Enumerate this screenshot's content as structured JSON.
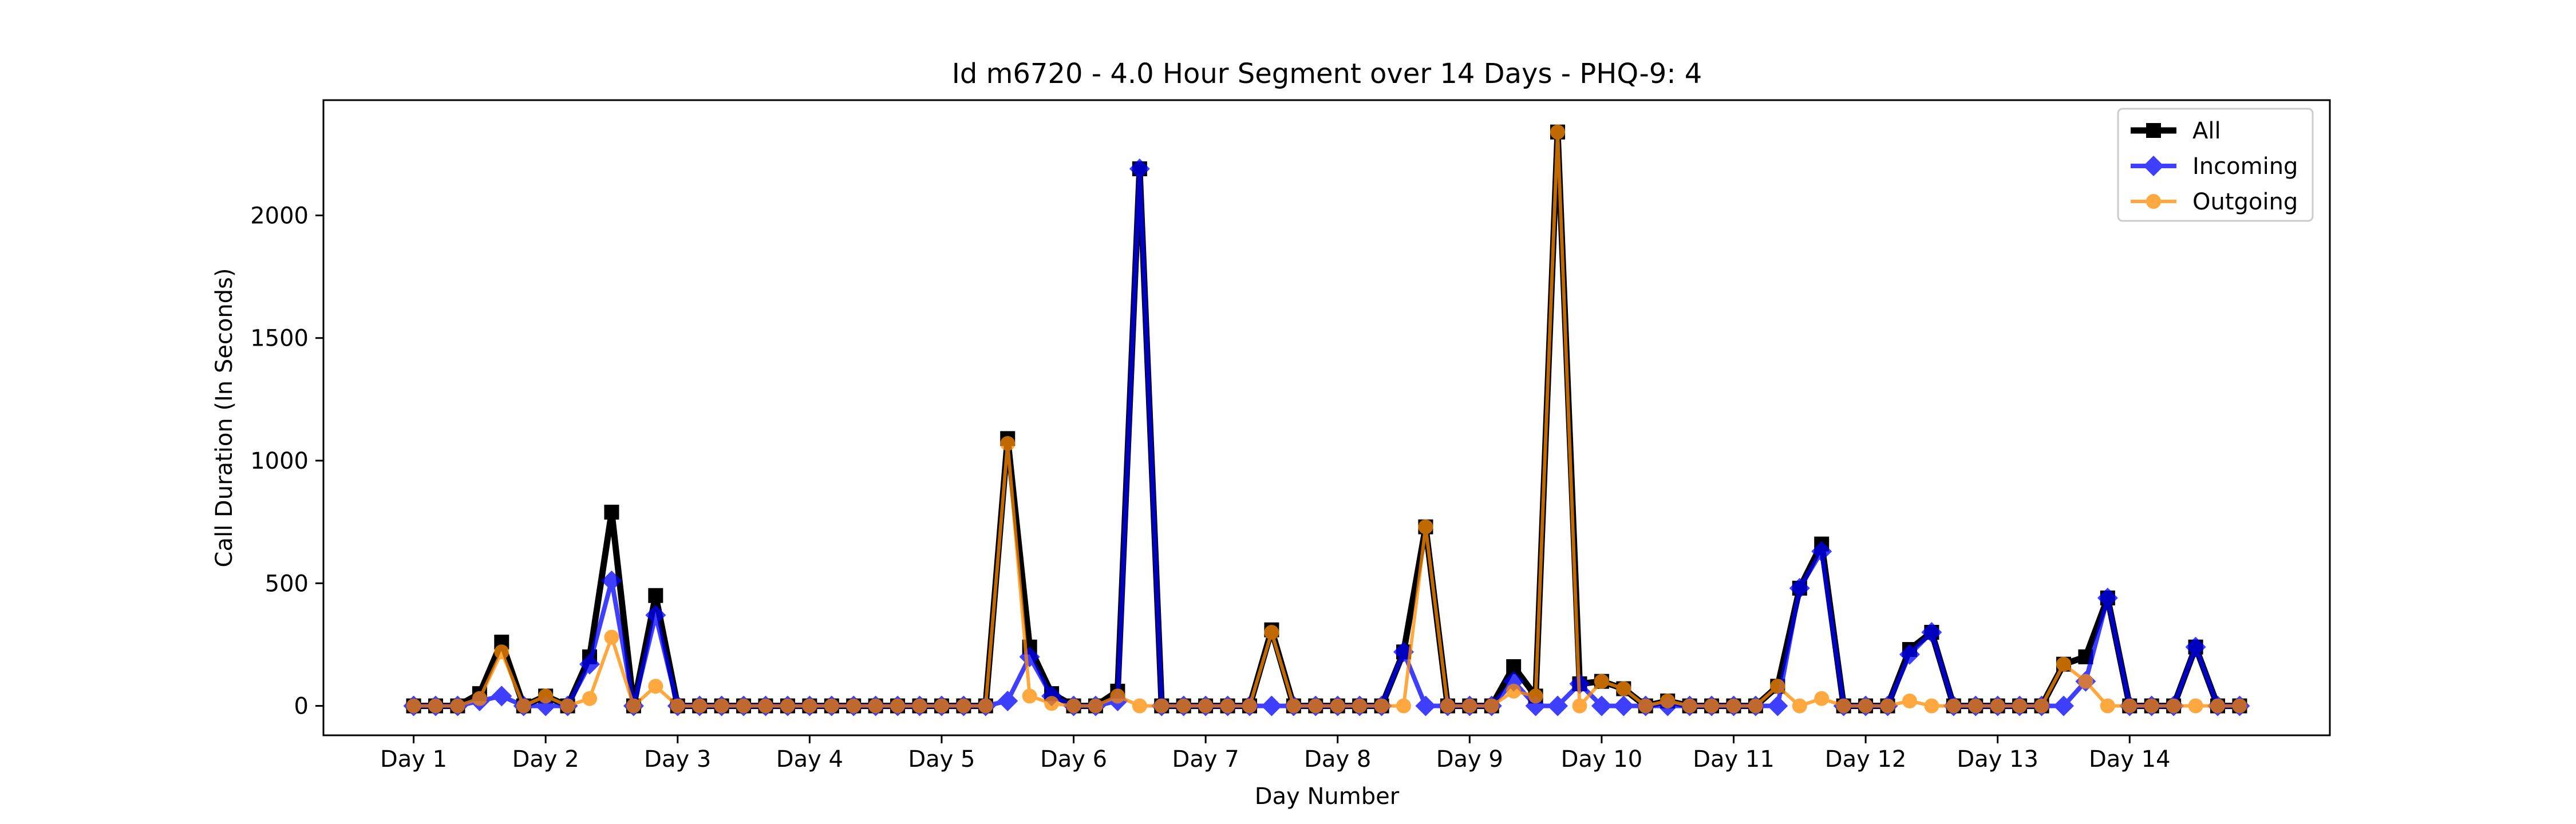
{
  "chart_data": {
    "type": "line",
    "title": "Id m6720 - 4.0 Hour Segment over 14 Days - PHQ-9: 4",
    "xlabel": "Day Number",
    "ylabel": "Call Duration (In Seconds)",
    "x_tick_labels": [
      "Day 1",
      "Day 2",
      "Day 3",
      "Day 4",
      "Day 5",
      "Day 6",
      "Day 7",
      "Day 8",
      "Day 9",
      "Day 10",
      "Day 11",
      "Day 12",
      "Day 13",
      "Day 14"
    ],
    "x_tick_positions": [
      0,
      6,
      12,
      18,
      24,
      30,
      36,
      42,
      48,
      54,
      60,
      66,
      72,
      78
    ],
    "y_ticks": [
      0,
      500,
      1000,
      1500,
      2000
    ],
    "xlim": [
      -4.1,
      87.1
    ],
    "ylim": [
      -120,
      2470
    ],
    "legend_position": "top-right",
    "series": [
      {
        "name": "All",
        "color": "#000000",
        "marker": "square",
        "values": [
          0,
          0,
          0,
          50,
          260,
          0,
          40,
          0,
          200,
          790,
          0,
          450,
          0,
          0,
          0,
          0,
          0,
          0,
          0,
          0,
          0,
          0,
          0,
          0,
          0,
          0,
          0,
          1090,
          240,
          50,
          0,
          0,
          60,
          2190,
          0,
          0,
          0,
          0,
          0,
          310,
          0,
          0,
          0,
          0,
          0,
          220,
          730,
          0,
          0,
          0,
          160,
          40,
          2340,
          90,
          100,
          70,
          0,
          20,
          0,
          0,
          0,
          0,
          80,
          480,
          660,
          0,
          0,
          0,
          230,
          300,
          0,
          0,
          0,
          0,
          0,
          170,
          200,
          440,
          0,
          0,
          0,
          240,
          0,
          0
        ]
      },
      {
        "name": "Incoming",
        "color": "#0000ff",
        "marker": "diamond",
        "values": [
          0,
          0,
          0,
          20,
          40,
          0,
          0,
          0,
          170,
          510,
          0,
          370,
          0,
          0,
          0,
          0,
          0,
          0,
          0,
          0,
          0,
          0,
          0,
          0,
          0,
          0,
          0,
          20,
          200,
          40,
          0,
          0,
          20,
          2190,
          0,
          0,
          0,
          0,
          0,
          0,
          0,
          0,
          0,
          0,
          0,
          220,
          0,
          0,
          0,
          0,
          100,
          0,
          0,
          90,
          0,
          0,
          0,
          0,
          0,
          0,
          0,
          0,
          0,
          480,
          630,
          0,
          0,
          0,
          210,
          300,
          0,
          0,
          0,
          0,
          0,
          0,
          100,
          440,
          0,
          0,
          0,
          240,
          0,
          0
        ]
      },
      {
        "name": "Outgoing",
        "color": "#ff8c00",
        "marker": "circle",
        "values": [
          0,
          0,
          0,
          30,
          220,
          0,
          40,
          0,
          30,
          280,
          0,
          80,
          0,
          0,
          0,
          0,
          0,
          0,
          0,
          0,
          0,
          0,
          0,
          0,
          0,
          0,
          0,
          1070,
          40,
          10,
          0,
          0,
          40,
          0,
          0,
          0,
          0,
          0,
          0,
          300,
          0,
          0,
          0,
          0,
          0,
          0,
          730,
          0,
          0,
          0,
          60,
          40,
          2340,
          0,
          100,
          70,
          0,
          20,
          0,
          0,
          0,
          0,
          80,
          0,
          30,
          0,
          0,
          0,
          20,
          0,
          0,
          0,
          0,
          0,
          0,
          170,
          100,
          0,
          0,
          0,
          0,
          0,
          0,
          0
        ]
      }
    ]
  }
}
